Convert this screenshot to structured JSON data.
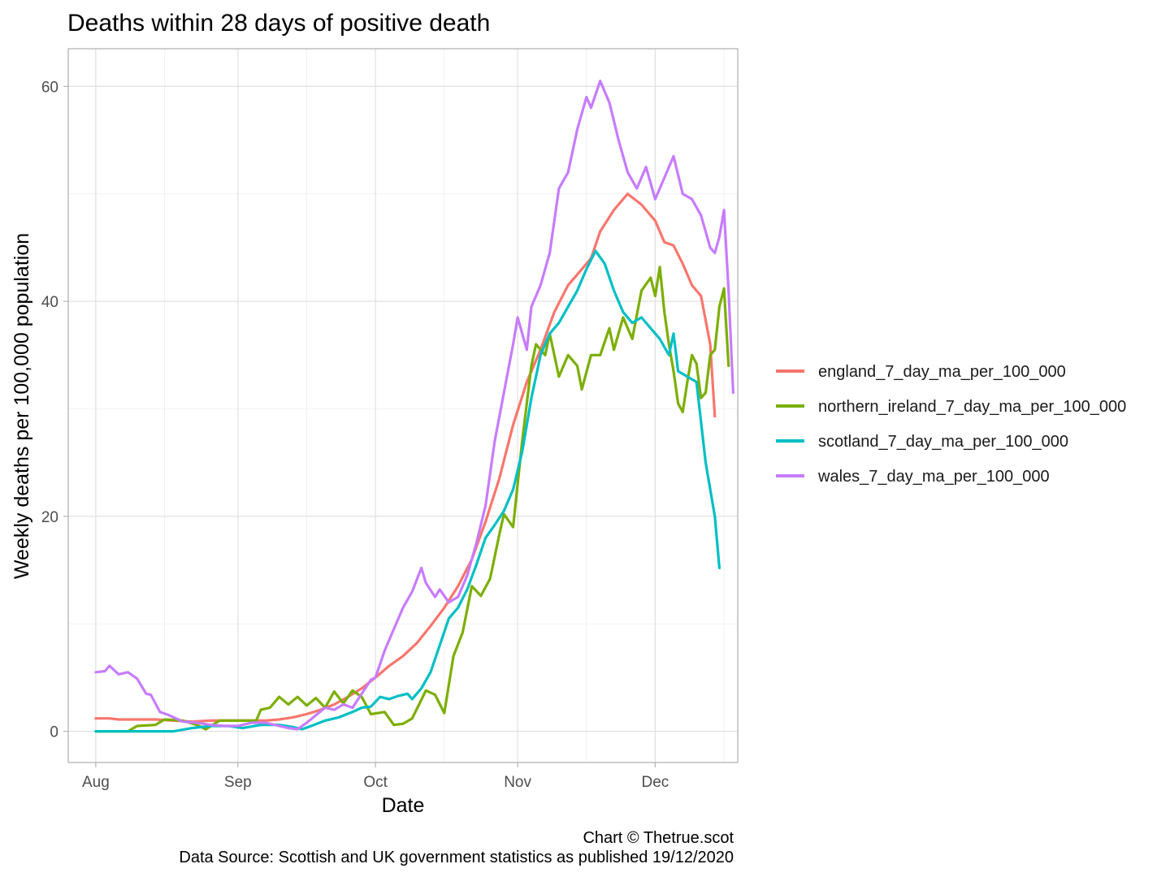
{
  "chart_data": {
    "type": "line",
    "title": "Deaths within 28 days of positive death",
    "xlabel": "Date",
    "ylabel": "Weekly deaths per 100,000 population",
    "x_start_date": "2020-08-01",
    "xlim_dates": [
      "2020-07-26",
      "2020-12-19"
    ],
    "ylim": [
      -2.9,
      63.5
    ],
    "x_ticks": [
      {
        "date": "2020-08-01",
        "label": "Aug"
      },
      {
        "date": "2020-09-01",
        "label": "Sep"
      },
      {
        "date": "2020-10-01",
        "label": "Oct"
      },
      {
        "date": "2020-11-01",
        "label": "Nov"
      },
      {
        "date": "2020-12-01",
        "label": "Dec"
      }
    ],
    "x_minor_dates": [
      "2020-08-16",
      "2020-09-16",
      "2020-10-16",
      "2020-11-16",
      "2020-12-16"
    ],
    "y_ticks": [
      0,
      20,
      40,
      60
    ],
    "y_minor": [
      10,
      30,
      50
    ],
    "grid": true,
    "legend_position": "right",
    "series": [
      {
        "name": "england_7_day_ma_per_100_000",
        "color": "#F8766D",
        "points": [
          [
            "2020-08-01",
            1.2
          ],
          [
            "2020-08-04",
            1.2
          ],
          [
            "2020-08-06",
            1.1
          ],
          [
            "2020-08-10",
            1.1
          ],
          [
            "2020-08-14",
            1.1
          ],
          [
            "2020-08-18",
            1.0
          ],
          [
            "2020-08-22",
            0.9
          ],
          [
            "2020-08-26",
            1.0
          ],
          [
            "2020-08-30",
            1.0
          ],
          [
            "2020-09-03",
            1.0
          ],
          [
            "2020-09-07",
            1.0
          ],
          [
            "2020-09-10",
            1.1
          ],
          [
            "2020-09-13",
            1.3
          ],
          [
            "2020-09-16",
            1.6
          ],
          [
            "2020-09-19",
            2.0
          ],
          [
            "2020-09-22",
            2.5
          ],
          [
            "2020-09-25",
            3.2
          ],
          [
            "2020-09-28",
            4.0
          ],
          [
            "2020-10-01",
            5.0
          ],
          [
            "2020-10-04",
            6.1
          ],
          [
            "2020-10-07",
            7.0
          ],
          [
            "2020-10-10",
            8.2
          ],
          [
            "2020-10-13",
            9.8
          ],
          [
            "2020-10-16",
            11.5
          ],
          [
            "2020-10-19",
            13.5
          ],
          [
            "2020-10-22",
            16.0
          ],
          [
            "2020-10-25",
            19.5
          ],
          [
            "2020-10-28",
            23.5
          ],
          [
            "2020-10-31",
            28.5
          ],
          [
            "2020-11-03",
            32.5
          ],
          [
            "2020-11-06",
            35.5
          ],
          [
            "2020-11-09",
            39.0
          ],
          [
            "2020-11-12",
            41.5
          ],
          [
            "2020-11-15",
            43.0
          ],
          [
            "2020-11-17",
            44.0
          ],
          [
            "2020-11-19",
            46.5
          ],
          [
            "2020-11-22",
            48.5
          ],
          [
            "2020-11-25",
            50.0
          ],
          [
            "2020-11-28",
            49.0
          ],
          [
            "2020-12-01",
            47.5
          ],
          [
            "2020-12-03",
            45.5
          ],
          [
            "2020-12-05",
            45.2
          ],
          [
            "2020-12-07",
            43.5
          ],
          [
            "2020-12-09",
            41.5
          ],
          [
            "2020-12-11",
            40.5
          ],
          [
            "2020-12-13",
            36.0
          ],
          [
            "2020-12-14",
            29.3
          ]
        ]
      },
      {
        "name": "northern_ireland_7_day_ma_per_100_000",
        "color": "#7CAE00",
        "points": [
          [
            "2020-08-01",
            0.0
          ],
          [
            "2020-08-08",
            0.0
          ],
          [
            "2020-08-10",
            0.5
          ],
          [
            "2020-08-14",
            0.6
          ],
          [
            "2020-08-16",
            1.1
          ],
          [
            "2020-08-20",
            1.0
          ],
          [
            "2020-08-23",
            0.6
          ],
          [
            "2020-08-25",
            0.2
          ],
          [
            "2020-08-28",
            1.0
          ],
          [
            "2020-09-01",
            1.0
          ],
          [
            "2020-09-05",
            1.0
          ],
          [
            "2020-09-06",
            2.0
          ],
          [
            "2020-09-08",
            2.2
          ],
          [
            "2020-09-10",
            3.2
          ],
          [
            "2020-09-12",
            2.5
          ],
          [
            "2020-09-14",
            3.2
          ],
          [
            "2020-09-16",
            2.4
          ],
          [
            "2020-09-18",
            3.1
          ],
          [
            "2020-09-20",
            2.2
          ],
          [
            "2020-09-22",
            3.7
          ],
          [
            "2020-09-24",
            2.6
          ],
          [
            "2020-09-26",
            3.8
          ],
          [
            "2020-09-28",
            3.2
          ],
          [
            "2020-09-30",
            1.6
          ],
          [
            "2020-10-03",
            1.8
          ],
          [
            "2020-10-05",
            0.6
          ],
          [
            "2020-10-07",
            0.7
          ],
          [
            "2020-10-09",
            1.2
          ],
          [
            "2020-10-12",
            3.8
          ],
          [
            "2020-10-14",
            3.4
          ],
          [
            "2020-10-16",
            1.7
          ],
          [
            "2020-10-18",
            7.0
          ],
          [
            "2020-10-20",
            9.2
          ],
          [
            "2020-10-22",
            13.5
          ],
          [
            "2020-10-24",
            12.6
          ],
          [
            "2020-10-26",
            14.2
          ],
          [
            "2020-10-28",
            18.3
          ],
          [
            "2020-10-29",
            20.2
          ],
          [
            "2020-10-31",
            19.0
          ],
          [
            "2020-11-02",
            27.0
          ],
          [
            "2020-11-04",
            34.0
          ],
          [
            "2020-11-05",
            36.0
          ],
          [
            "2020-11-07",
            35.0
          ],
          [
            "2020-11-08",
            37.0
          ],
          [
            "2020-11-10",
            33.0
          ],
          [
            "2020-11-12",
            35.0
          ],
          [
            "2020-11-14",
            34.0
          ],
          [
            "2020-11-15",
            31.8
          ],
          [
            "2020-11-17",
            35.0
          ],
          [
            "2020-11-19",
            35.0
          ],
          [
            "2020-11-21",
            37.5
          ],
          [
            "2020-11-22",
            35.5
          ],
          [
            "2020-11-24",
            38.5
          ],
          [
            "2020-11-26",
            36.5
          ],
          [
            "2020-11-28",
            41.0
          ],
          [
            "2020-11-30",
            42.2
          ],
          [
            "2020-12-01",
            40.5
          ],
          [
            "2020-12-02",
            43.2
          ],
          [
            "2020-12-03",
            39.0
          ],
          [
            "2020-12-04",
            36.0
          ],
          [
            "2020-12-05",
            33.5
          ],
          [
            "2020-12-06",
            30.5
          ],
          [
            "2020-12-07",
            29.7
          ],
          [
            "2020-12-08",
            32.5
          ],
          [
            "2020-12-09",
            35.0
          ],
          [
            "2020-12-10",
            34.2
          ],
          [
            "2020-12-11",
            31.0
          ],
          [
            "2020-12-12",
            31.5
          ],
          [
            "2020-12-13",
            35.0
          ],
          [
            "2020-12-14",
            35.5
          ],
          [
            "2020-12-15",
            39.5
          ],
          [
            "2020-12-16",
            41.2
          ],
          [
            "2020-12-17",
            34.0
          ]
        ]
      },
      {
        "name": "scotland_7_day_ma_per_100_000",
        "color": "#00BFC4",
        "points": [
          [
            "2020-08-01",
            0.0
          ],
          [
            "2020-08-10",
            0.0
          ],
          [
            "2020-08-18",
            0.0
          ],
          [
            "2020-08-22",
            0.3
          ],
          [
            "2020-08-26",
            0.5
          ],
          [
            "2020-08-30",
            0.5
          ],
          [
            "2020-09-02",
            0.3
          ],
          [
            "2020-09-06",
            0.6
          ],
          [
            "2020-09-10",
            0.6
          ],
          [
            "2020-09-13",
            0.4
          ],
          [
            "2020-09-15",
            0.2
          ],
          [
            "2020-09-17",
            0.5
          ],
          [
            "2020-09-20",
            1.0
          ],
          [
            "2020-09-23",
            1.3
          ],
          [
            "2020-09-26",
            1.8
          ],
          [
            "2020-09-28",
            2.2
          ],
          [
            "2020-09-30",
            2.3
          ],
          [
            "2020-10-02",
            3.2
          ],
          [
            "2020-10-04",
            3.0
          ],
          [
            "2020-10-06",
            3.3
          ],
          [
            "2020-10-08",
            3.5
          ],
          [
            "2020-10-09",
            3.0
          ],
          [
            "2020-10-11",
            4.0
          ],
          [
            "2020-10-13",
            5.5
          ],
          [
            "2020-10-15",
            8.0
          ],
          [
            "2020-10-17",
            10.5
          ],
          [
            "2020-10-19",
            11.5
          ],
          [
            "2020-10-21",
            13.2
          ],
          [
            "2020-10-23",
            15.5
          ],
          [
            "2020-10-25",
            18.0
          ],
          [
            "2020-10-27",
            19.2
          ],
          [
            "2020-10-29",
            20.5
          ],
          [
            "2020-10-31",
            22.5
          ],
          [
            "2020-11-02",
            26.0
          ],
          [
            "2020-11-04",
            31.0
          ],
          [
            "2020-11-06",
            35.0
          ],
          [
            "2020-11-08",
            37.0
          ],
          [
            "2020-11-10",
            38.0
          ],
          [
            "2020-11-12",
            39.5
          ],
          [
            "2020-11-14",
            41.0
          ],
          [
            "2020-11-16",
            43.0
          ],
          [
            "2020-11-18",
            44.7
          ],
          [
            "2020-11-20",
            43.5
          ],
          [
            "2020-11-22",
            41.0
          ],
          [
            "2020-11-24",
            39.0
          ],
          [
            "2020-11-26",
            38.0
          ],
          [
            "2020-11-28",
            38.5
          ],
          [
            "2020-11-30",
            37.5
          ],
          [
            "2020-12-02",
            36.5
          ],
          [
            "2020-12-04",
            35.0
          ],
          [
            "2020-12-05",
            37.0
          ],
          [
            "2020-12-06",
            33.5
          ],
          [
            "2020-12-08",
            33.0
          ],
          [
            "2020-12-10",
            32.5
          ],
          [
            "2020-12-12",
            25.0
          ],
          [
            "2020-12-14",
            20.0
          ],
          [
            "2020-12-15",
            15.2
          ]
        ]
      },
      {
        "name": "wales_7_day_ma_per_100_000",
        "color": "#C77CFF",
        "points": [
          [
            "2020-08-01",
            5.5
          ],
          [
            "2020-08-03",
            5.6
          ],
          [
            "2020-08-04",
            6.1
          ],
          [
            "2020-08-06",
            5.3
          ],
          [
            "2020-08-08",
            5.5
          ],
          [
            "2020-08-10",
            4.9
          ],
          [
            "2020-08-12",
            3.5
          ],
          [
            "2020-08-13",
            3.4
          ],
          [
            "2020-08-15",
            1.8
          ],
          [
            "2020-08-17",
            1.5
          ],
          [
            "2020-08-20",
            0.9
          ],
          [
            "2020-08-23",
            0.8
          ],
          [
            "2020-08-26",
            0.6
          ],
          [
            "2020-08-29",
            0.5
          ],
          [
            "2020-09-01",
            0.5
          ],
          [
            "2020-09-04",
            0.8
          ],
          [
            "2020-09-07",
            0.8
          ],
          [
            "2020-09-10",
            0.5
          ],
          [
            "2020-09-12",
            0.3
          ],
          [
            "2020-09-14",
            0.2
          ],
          [
            "2020-09-16",
            0.8
          ],
          [
            "2020-09-18",
            1.5
          ],
          [
            "2020-09-20",
            2.2
          ],
          [
            "2020-09-22",
            2.0
          ],
          [
            "2020-09-24",
            2.5
          ],
          [
            "2020-09-26",
            2.2
          ],
          [
            "2020-09-28",
            3.5
          ],
          [
            "2020-09-30",
            4.8
          ],
          [
            "2020-10-01",
            5.0
          ],
          [
            "2020-10-03",
            7.5
          ],
          [
            "2020-10-05",
            9.5
          ],
          [
            "2020-10-07",
            11.5
          ],
          [
            "2020-10-09",
            13.0
          ],
          [
            "2020-10-11",
            15.2
          ],
          [
            "2020-10-12",
            13.8
          ],
          [
            "2020-10-14",
            12.5
          ],
          [
            "2020-10-15",
            13.2
          ],
          [
            "2020-10-17",
            12.0
          ],
          [
            "2020-10-19",
            12.5
          ],
          [
            "2020-10-21",
            14.5
          ],
          [
            "2020-10-23",
            17.5
          ],
          [
            "2020-10-25",
            21.0
          ],
          [
            "2020-10-27",
            27.0
          ],
          [
            "2020-10-29",
            31.5
          ],
          [
            "2020-10-31",
            36.0
          ],
          [
            "2020-11-01",
            38.5
          ],
          [
            "2020-11-03",
            35.5
          ],
          [
            "2020-11-04",
            39.5
          ],
          [
            "2020-11-06",
            41.5
          ],
          [
            "2020-11-08",
            44.5
          ],
          [
            "2020-11-10",
            50.5
          ],
          [
            "2020-11-12",
            52.0
          ],
          [
            "2020-11-14",
            56.0
          ],
          [
            "2020-11-16",
            59.0
          ],
          [
            "2020-11-17",
            58.0
          ],
          [
            "2020-11-19",
            60.5
          ],
          [
            "2020-11-21",
            58.5
          ],
          [
            "2020-11-23",
            55.0
          ],
          [
            "2020-11-25",
            52.0
          ],
          [
            "2020-11-27",
            50.5
          ],
          [
            "2020-11-29",
            52.5
          ],
          [
            "2020-11-30",
            51.0
          ],
          [
            "2020-12-01",
            49.5
          ],
          [
            "2020-12-03",
            51.5
          ],
          [
            "2020-12-05",
            53.5
          ],
          [
            "2020-12-07",
            50.0
          ],
          [
            "2020-12-09",
            49.5
          ],
          [
            "2020-12-11",
            48.0
          ],
          [
            "2020-12-13",
            45.0
          ],
          [
            "2020-12-14",
            44.5
          ],
          [
            "2020-12-15",
            46.0
          ],
          [
            "2020-12-16",
            48.5
          ],
          [
            "2020-12-17",
            41.0
          ],
          [
            "2020-12-18",
            31.5
          ]
        ]
      }
    ],
    "caption": [
      "Chart © Thetrue.scot",
      "Data Source: Scottish and UK government statistics as published 19/12/2020"
    ]
  }
}
